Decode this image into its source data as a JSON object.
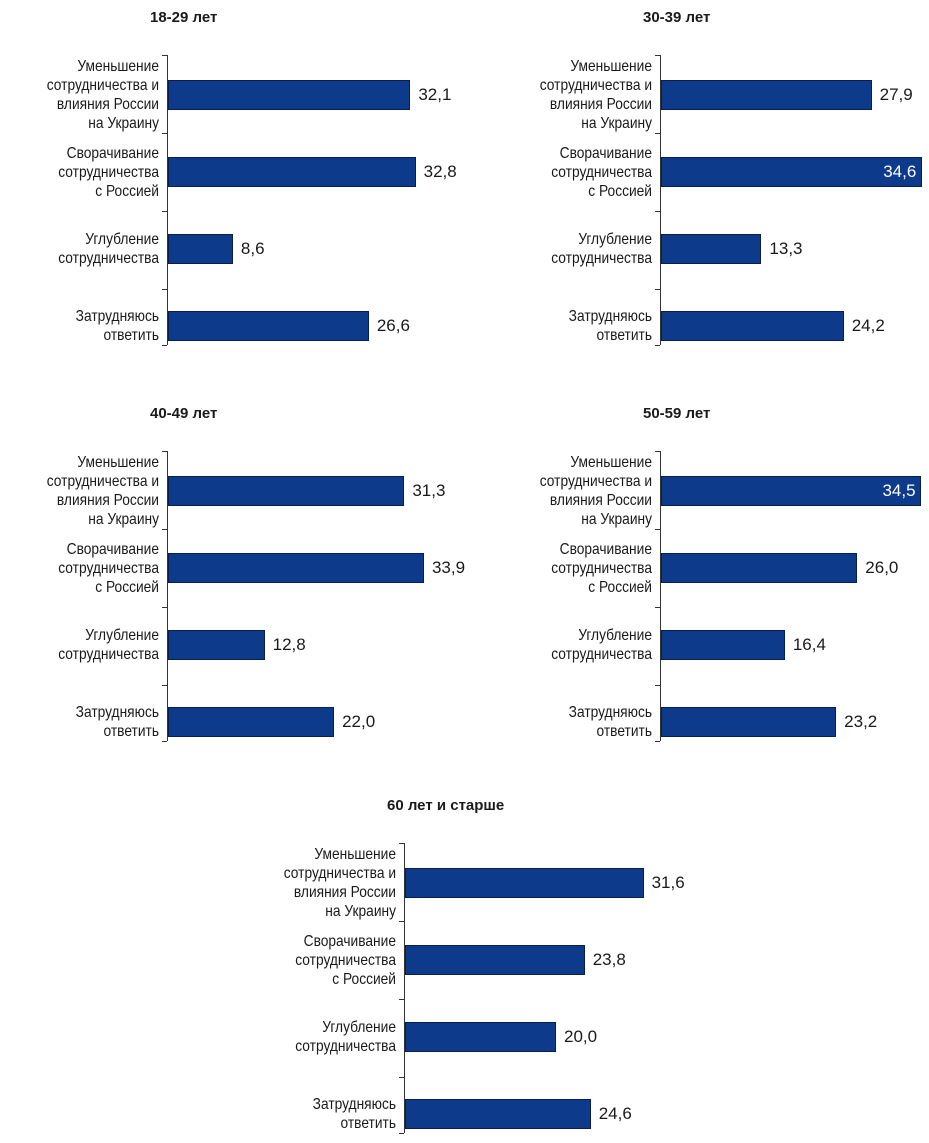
{
  "chart_data": [
    {
      "type": "bar",
      "orientation": "horizontal",
      "title": "18-29 лет",
      "color": "#0d3a8a",
      "categories": [
        "Уменьшение\nсотрудничества и\nвлияния России\nна Украину",
        "Сворачивание\nсотрудничества\nс Россией",
        "Углубление\nсотрудничества",
        "Затрудняюсь\nответить"
      ],
      "values": [
        32.1,
        32.8,
        8.6,
        26.6
      ],
      "value_labels": [
        "32,1",
        "32,8",
        "8,6",
        "26,6"
      ]
    },
    {
      "type": "bar",
      "orientation": "horizontal",
      "title": "30-39 лет",
      "color": "#0d3a8a",
      "categories": [
        "Уменьшение\nсотрудничества и\nвлияния России\nна Украину",
        "Сворачивание\nсотрудничества\nс Россией",
        "Углубление\nсотрудничества",
        "Затрудняюсь\nответить"
      ],
      "values": [
        27.9,
        34.6,
        13.3,
        24.2
      ],
      "value_labels": [
        "27,9",
        "34,6",
        "13,3",
        "24,2"
      ]
    },
    {
      "type": "bar",
      "orientation": "horizontal",
      "title": "40-49 лет",
      "color": "#0d3a8a",
      "categories": [
        "Уменьшение\nсотрудничества и\nвлияния России\nна Украину",
        "Сворачивание\nсотрудничества\nс Россией",
        "Углубление\nсотрудничества",
        "Затрудняюсь\nответить"
      ],
      "values": [
        31.3,
        33.9,
        12.8,
        22.0
      ],
      "value_labels": [
        "31,3",
        "33,9",
        "12,8",
        "22,0"
      ]
    },
    {
      "type": "bar",
      "orientation": "horizontal",
      "title": "50-59 лет",
      "color": "#0d3a8a",
      "categories": [
        "Уменьшение\nсотрудничества и\nвлияния России\nна Украину",
        "Сворачивание\nсотрудничества\nс Россией",
        "Углубление\nсотрудничества",
        "Затрудняюсь\nответить"
      ],
      "values": [
        34.5,
        26.0,
        16.4,
        23.2
      ],
      "value_labels": [
        "34,5",
        "26,0",
        "16,4",
        "23,2"
      ]
    },
    {
      "type": "bar",
      "orientation": "horizontal",
      "title": "60 лет и старше",
      "color": "#0d3a8a",
      "categories": [
        "Уменьшение\nсотрудничества и\nвлияния России\nна Украину",
        "Сворачивание\nсотрудничества\nс Россией",
        "Углубление\nсотрудничества",
        "Затрудняюсь\nответить"
      ],
      "values": [
        31.6,
        23.8,
        20.0,
        24.6
      ],
      "value_labels": [
        "31,6",
        "23,8",
        "20,0",
        "24,6"
      ]
    }
  ]
}
